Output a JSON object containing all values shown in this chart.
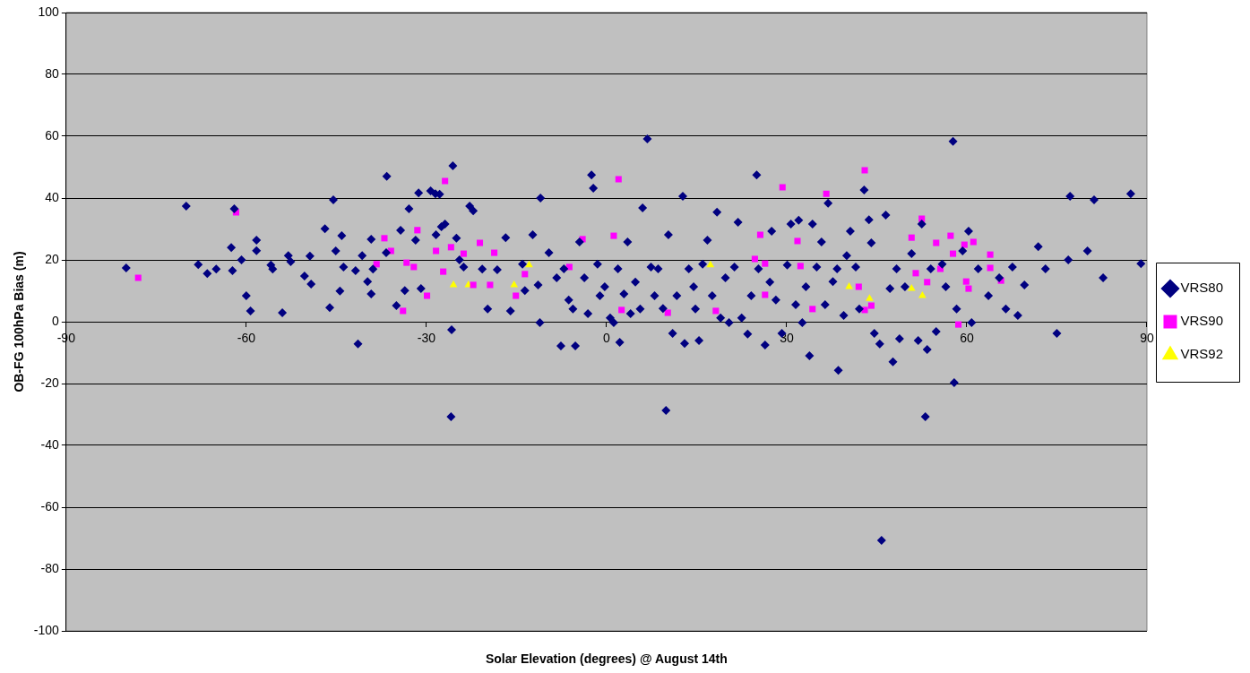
{
  "chart_data": {
    "type": "scatter",
    "xlabel": "Solar Elevation (degrees) @ August 14th",
    "ylabel": "OB-FG 100hPa Bias (m)",
    "xlim": [
      -90,
      90
    ],
    "xticks": [
      -90,
      -60,
      -30,
      0,
      30,
      60,
      90
    ],
    "ylim": [
      -100,
      100
    ],
    "yticks": [
      -100,
      -80,
      -60,
      -40,
      -20,
      0,
      20,
      40,
      60,
      80,
      100
    ],
    "grid": "y",
    "legend": "right",
    "series": [
      {
        "name": "VRS80",
        "color": "#000080",
        "marker": "diamond",
        "x": [
          -80,
          -70,
          -68,
          -66.5,
          -65,
          -62.5,
          -62,
          -62.3,
          -60.8,
          -60,
          -59.3,
          -58.3,
          -58.3,
          -55.9,
          -55.6,
          -54,
          -53,
          -52.6,
          -50.3,
          -49.2,
          -49.4,
          -46.9,
          -46.1,
          -45.5,
          -45.1,
          -44.1,
          -43.8,
          -44.4,
          -41.8,
          -41.4,
          -40.7,
          -39.8,
          -39.2,
          -38.9,
          -39.2,
          -36.6,
          -36.7,
          -35,
          -34.3,
          -33.6,
          -32.9,
          -31.8,
          -31.3,
          -30.9,
          -29.3,
          -28.5,
          -27.8,
          -28.4,
          -27.5,
          -26.9,
          -25.8,
          -25.9,
          -25.6,
          -25,
          -24.5,
          -23.8,
          -22.8,
          -22.2,
          -20.7,
          -19.8,
          -18.2,
          -16.8,
          -16,
          -14,
          -13.6,
          -12.3,
          -11.4,
          -11.1,
          -11,
          -9.6,
          -8.3,
          -7.6,
          -7.1,
          -6.3,
          -5.6,
          -5.2,
          -4.5,
          -3.7,
          -3.1,
          -2.5,
          -2.2,
          -1.5,
          -1.1,
          -0.3,
          0.6,
          1.2,
          1.9,
          2.2,
          2.9,
          3.5,
          4,
          4.8,
          5.6,
          6,
          6.8,
          7.4,
          8,
          8.6,
          9.4,
          9.9,
          10.3,
          11,
          11.7,
          12.7,
          13,
          13.7,
          14.5,
          14.8,
          15.4,
          16,
          16.8,
          17.6,
          18.4,
          19,
          19.8,
          20.4,
          21.3,
          21.9,
          22.5,
          23.5,
          24.1,
          25,
          25.3,
          26.4,
          27.2,
          27.5,
          28.2,
          29.2,
          30.1,
          30.7,
          31.5,
          32,
          32.6,
          33.2,
          33.8,
          34.3,
          35,
          35.8,
          36.4,
          36.9,
          37.7,
          38.4,
          38.6,
          39.5,
          40,
          40.6,
          41.5,
          42.1,
          42.9,
          43.7,
          44.1,
          44.6,
          45.5,
          45.8,
          46.5,
          47.2,
          47.7,
          48.3,
          48.8,
          49.7,
          50.8,
          51.9,
          52.5,
          53.1,
          53.4,
          54,
          54.9,
          55.9,
          56.5,
          57.7,
          57.9,
          58.3,
          59.3,
          60.3,
          60.8,
          61.9,
          63.6,
          65.4,
          66.5,
          67.6,
          68.5,
          69.6,
          71.9,
          73.1,
          75,
          76.9,
          77.2,
          80.1,
          81.2,
          82.7,
          87.3,
          89
        ],
        "values": [
          17.4,
          37.4,
          18.5,
          15.6,
          17,
          24,
          36.5,
          16.5,
          20,
          8.4,
          3.5,
          26.4,
          23,
          18.3,
          17,
          2.9,
          21.4,
          19.4,
          14.8,
          12.2,
          21.2,
          30.1,
          4.6,
          39.4,
          22.9,
          27.8,
          17.7,
          9.9,
          16.5,
          -7.2,
          21.4,
          13,
          26.7,
          17,
          9,
          47,
          22.3,
          5.2,
          29.6,
          10.1,
          36.5,
          26.4,
          41.7,
          10.7,
          42.3,
          41.4,
          41.2,
          28.1,
          30.7,
          31.6,
          -2.6,
          -30.7,
          50.4,
          27,
          20,
          17.7,
          37.4,
          35.9,
          17,
          4.1,
          16.8,
          27.2,
          3.5,
          18.6,
          10.1,
          28.1,
          11.9,
          -0.3,
          40,
          22.3,
          14.2,
          -7.8,
          17.1,
          7,
          4.1,
          -7.8,
          25.8,
          14.2,
          2.6,
          47.5,
          43.2,
          18.6,
          8.4,
          11.3,
          1.2,
          -0.3,
          17.1,
          -6.7,
          9,
          25.8,
          2.6,
          12.8,
          4.1,
          36.8,
          59.1,
          17.7,
          8.4,
          17.1,
          4.3,
          -28.7,
          28.1,
          -3.8,
          8.4,
          40.6,
          -7,
          17.1,
          11.3,
          4.1,
          -6.1,
          18.6,
          26.4,
          8.4,
          35.4,
          1.2,
          14.2,
          -0.3,
          17.7,
          32.2,
          1.2,
          -4,
          8.4,
          47.5,
          17.1,
          -7.5,
          12.8,
          29.3,
          7,
          -3.8,
          18.3,
          31.6,
          5.5,
          32.8,
          -0.3,
          11.3,
          -11,
          31.6,
          17.7,
          25.8,
          5.5,
          38.3,
          13,
          17.1,
          -15.7,
          2,
          21.4,
          29.3,
          17.7,
          4.1,
          42.6,
          33,
          25.5,
          -3.8,
          -7.2,
          -70.7,
          34.5,
          10.7,
          -13,
          17.1,
          -5.5,
          11.3,
          22,
          -6.1,
          31.6,
          -30.7,
          -9,
          17.1,
          -3.2,
          18.6,
          11.3,
          58.3,
          -19.7,
          4.1,
          22.9,
          29.3,
          -0.3,
          17.1,
          8.4,
          14.2,
          4.1,
          17.7,
          2,
          11.9,
          24.3,
          17.1,
          -3.8,
          20,
          40.6,
          22.9,
          39.4,
          14.2,
          41.4,
          18.8
        ]
      },
      {
        "name": "VRS90",
        "color": "#ff00ff",
        "marker": "square",
        "x": [
          -78,
          -61.7,
          -38.3,
          -37,
          -35.9,
          -33.9,
          -33.3,
          -32.1,
          -31.5,
          -29.9,
          -28.4,
          -27.2,
          -26.9,
          -25.9,
          -23.8,
          -22.2,
          -21.1,
          -19.4,
          -18.7,
          -15.1,
          -13.6,
          -6.2,
          -4,
          1.2,
          2,
          2.5,
          10.2,
          18.2,
          24.7,
          25.6,
          26.4,
          26.4,
          29.3,
          31.8,
          32.3,
          34.3,
          36.6,
          42,
          43,
          43,
          44.1,
          50.8,
          51.5,
          52.5,
          53.4,
          54.9,
          55.6,
          57.3,
          57.7,
          58.6,
          59.6,
          59.9,
          60.3,
          61.1,
          63.9,
          63.9,
          65.7
        ],
        "values": [
          14.2,
          35.4,
          18.6,
          27,
          22.9,
          3.5,
          19.1,
          17.7,
          29.6,
          8.4,
          22.9,
          16.2,
          45.5,
          24.1,
          22,
          11.9,
          25.5,
          11.9,
          22.3,
          8.4,
          15.4,
          17.7,
          26.7,
          27.8,
          46.1,
          3.8,
          2.9,
          3.5,
          20.3,
          28.1,
          18.8,
          8.7,
          43.5,
          26.1,
          18,
          4.1,
          41.4,
          11.3,
          49,
          3.8,
          5.2,
          27.2,
          15.7,
          33.3,
          12.8,
          25.5,
          17.1,
          27.8,
          22,
          -0.9,
          24.9,
          13,
          10.7,
          25.8,
          21.7,
          17.4,
          13.3
        ]
      },
      {
        "name": "VRS92",
        "color": "#ffff00",
        "marker": "triangle",
        "x": [
          -25.5,
          -23,
          -15.4,
          -12.9,
          17.3,
          40.4,
          43.8,
          50.8,
          52.6
        ],
        "values": [
          11.9,
          11.9,
          11.9,
          18.3,
          18.3,
          11.3,
          7.5,
          10.7,
          8.4
        ]
      }
    ]
  }
}
